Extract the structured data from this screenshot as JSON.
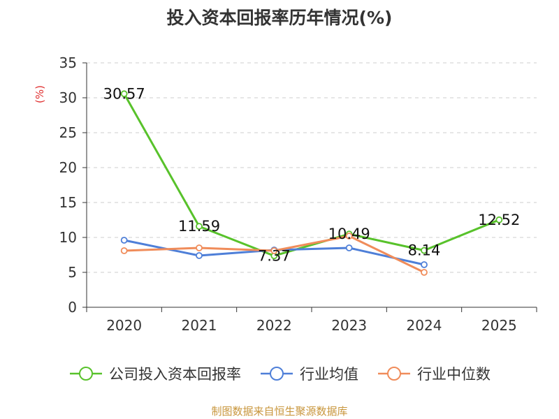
{
  "chart_data": {
    "type": "line",
    "title": "投入资本回报率历年情况(%)",
    "ylabel": "(%)",
    "categories": [
      "2020",
      "2021",
      "2022",
      "2023",
      "2024",
      "2025"
    ],
    "ylim": [
      0,
      35
    ],
    "yticks": [
      0,
      5,
      10,
      15,
      20,
      25,
      30,
      35
    ],
    "grid": true,
    "legend_position": "bottom",
    "series": [
      {
        "name": "公司投入资本回报率",
        "color": "#58c22b",
        "values": [
          30.57,
          11.59,
          7.37,
          10.49,
          8.14,
          12.52
        ],
        "labels": [
          "30.57",
          "11.59",
          "7.37",
          "10.49",
          "8.14",
          "12.52"
        ]
      },
      {
        "name": "行业均值",
        "color": "#4e7fd8",
        "values": [
          9.6,
          7.4,
          8.2,
          8.5,
          6.1,
          null
        ]
      },
      {
        "name": "行业中位数",
        "color": "#f08c5a",
        "values": [
          8.1,
          8.5,
          8.1,
          10.2,
          5.0,
          null
        ]
      }
    ],
    "source": "制图数据来自恒生聚源数据库"
  }
}
